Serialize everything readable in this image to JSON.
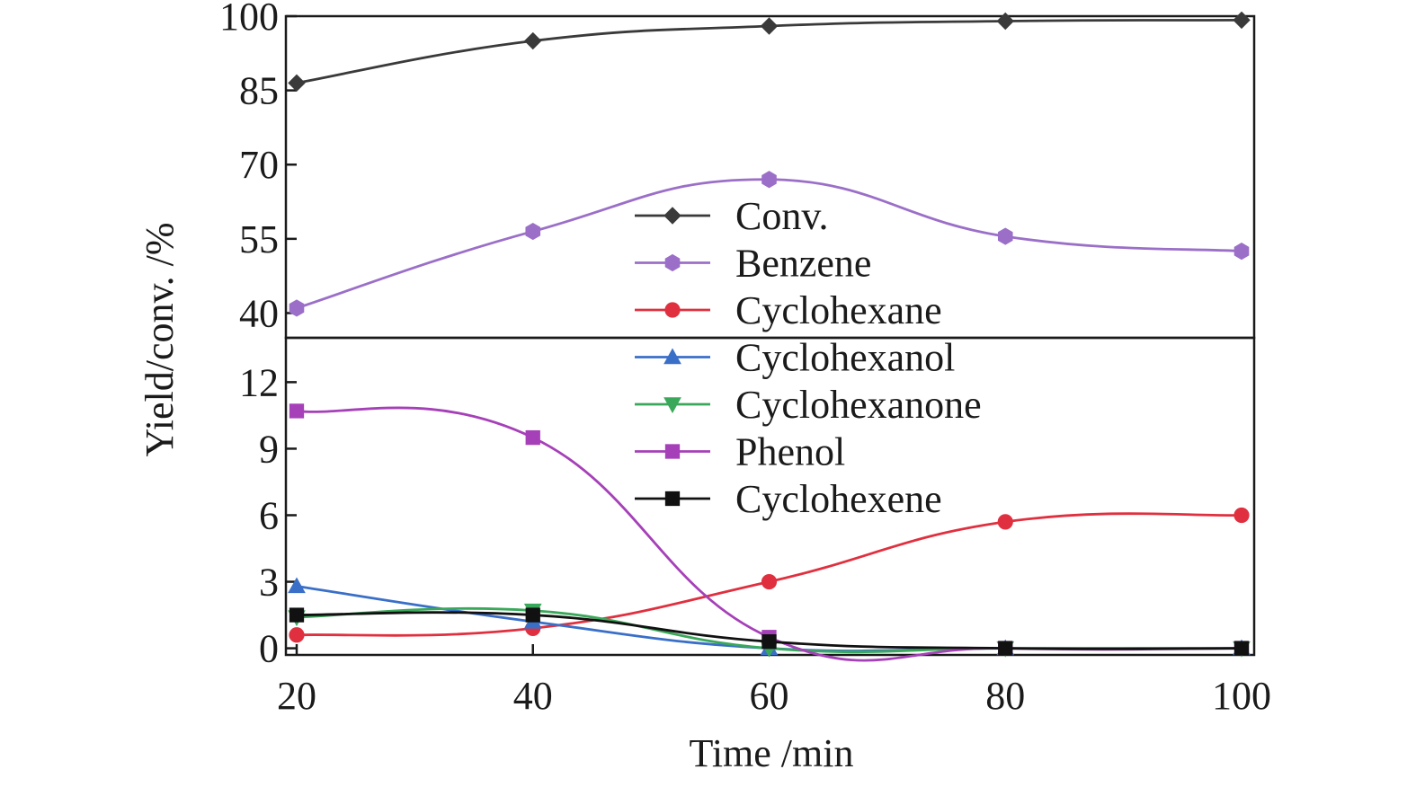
{
  "chart_data": {
    "type": "line",
    "xlabel": "Time /min",
    "ylabel": "Yield/conv. /%",
    "x": [
      20,
      40,
      60,
      80,
      100
    ],
    "x_ticks": [
      "20",
      "40",
      "60",
      "80",
      "100"
    ],
    "xlim": [
      20,
      100
    ],
    "panels": [
      {
        "id": "top",
        "ylim": [
          35,
          100
        ],
        "y_ticks": [
          40,
          55,
          70,
          85,
          100
        ]
      },
      {
        "id": "bottom",
        "ylim": [
          -0.3,
          14
        ],
        "y_ticks": [
          0,
          3,
          6,
          9,
          12
        ]
      }
    ],
    "grid": false,
    "legend_position": "center",
    "series": [
      {
        "name": "Conv.",
        "panel": "top",
        "color": "#3a3a3a",
        "marker": "diamond",
        "values": [
          86.5,
          95,
          98,
          99,
          99.2
        ]
      },
      {
        "name": "Benzene",
        "panel": "top",
        "color": "#9b6fc8",
        "marker": "hexagon",
        "values": [
          41,
          56.5,
          67,
          55.5,
          52.5
        ]
      },
      {
        "name": "Cyclohexane",
        "panel": "bottom",
        "color": "#e0303f",
        "marker": "circle",
        "values": [
          0.6,
          0.9,
          3.0,
          5.7,
          6.0
        ]
      },
      {
        "name": "Cyclohexanol",
        "panel": "bottom",
        "color": "#3a6fc8",
        "marker": "triangle-up",
        "values": [
          2.8,
          1.2,
          0.0,
          0.0,
          0.0
        ]
      },
      {
        "name": "Cyclohexanone",
        "panel": "bottom",
        "color": "#3aa85a",
        "marker": "triangle-down",
        "values": [
          1.4,
          1.7,
          0.0,
          0.0,
          0.0
        ]
      },
      {
        "name": "Phenol",
        "panel": "bottom",
        "color": "#a640b8",
        "marker": "square",
        "values": [
          10.7,
          9.5,
          0.5,
          0.0,
          0.0
        ]
      },
      {
        "name": "Cyclohexene",
        "panel": "bottom",
        "color": "#111111",
        "marker": "square",
        "values": [
          1.5,
          1.5,
          0.3,
          0.0,
          0.0
        ]
      }
    ]
  }
}
